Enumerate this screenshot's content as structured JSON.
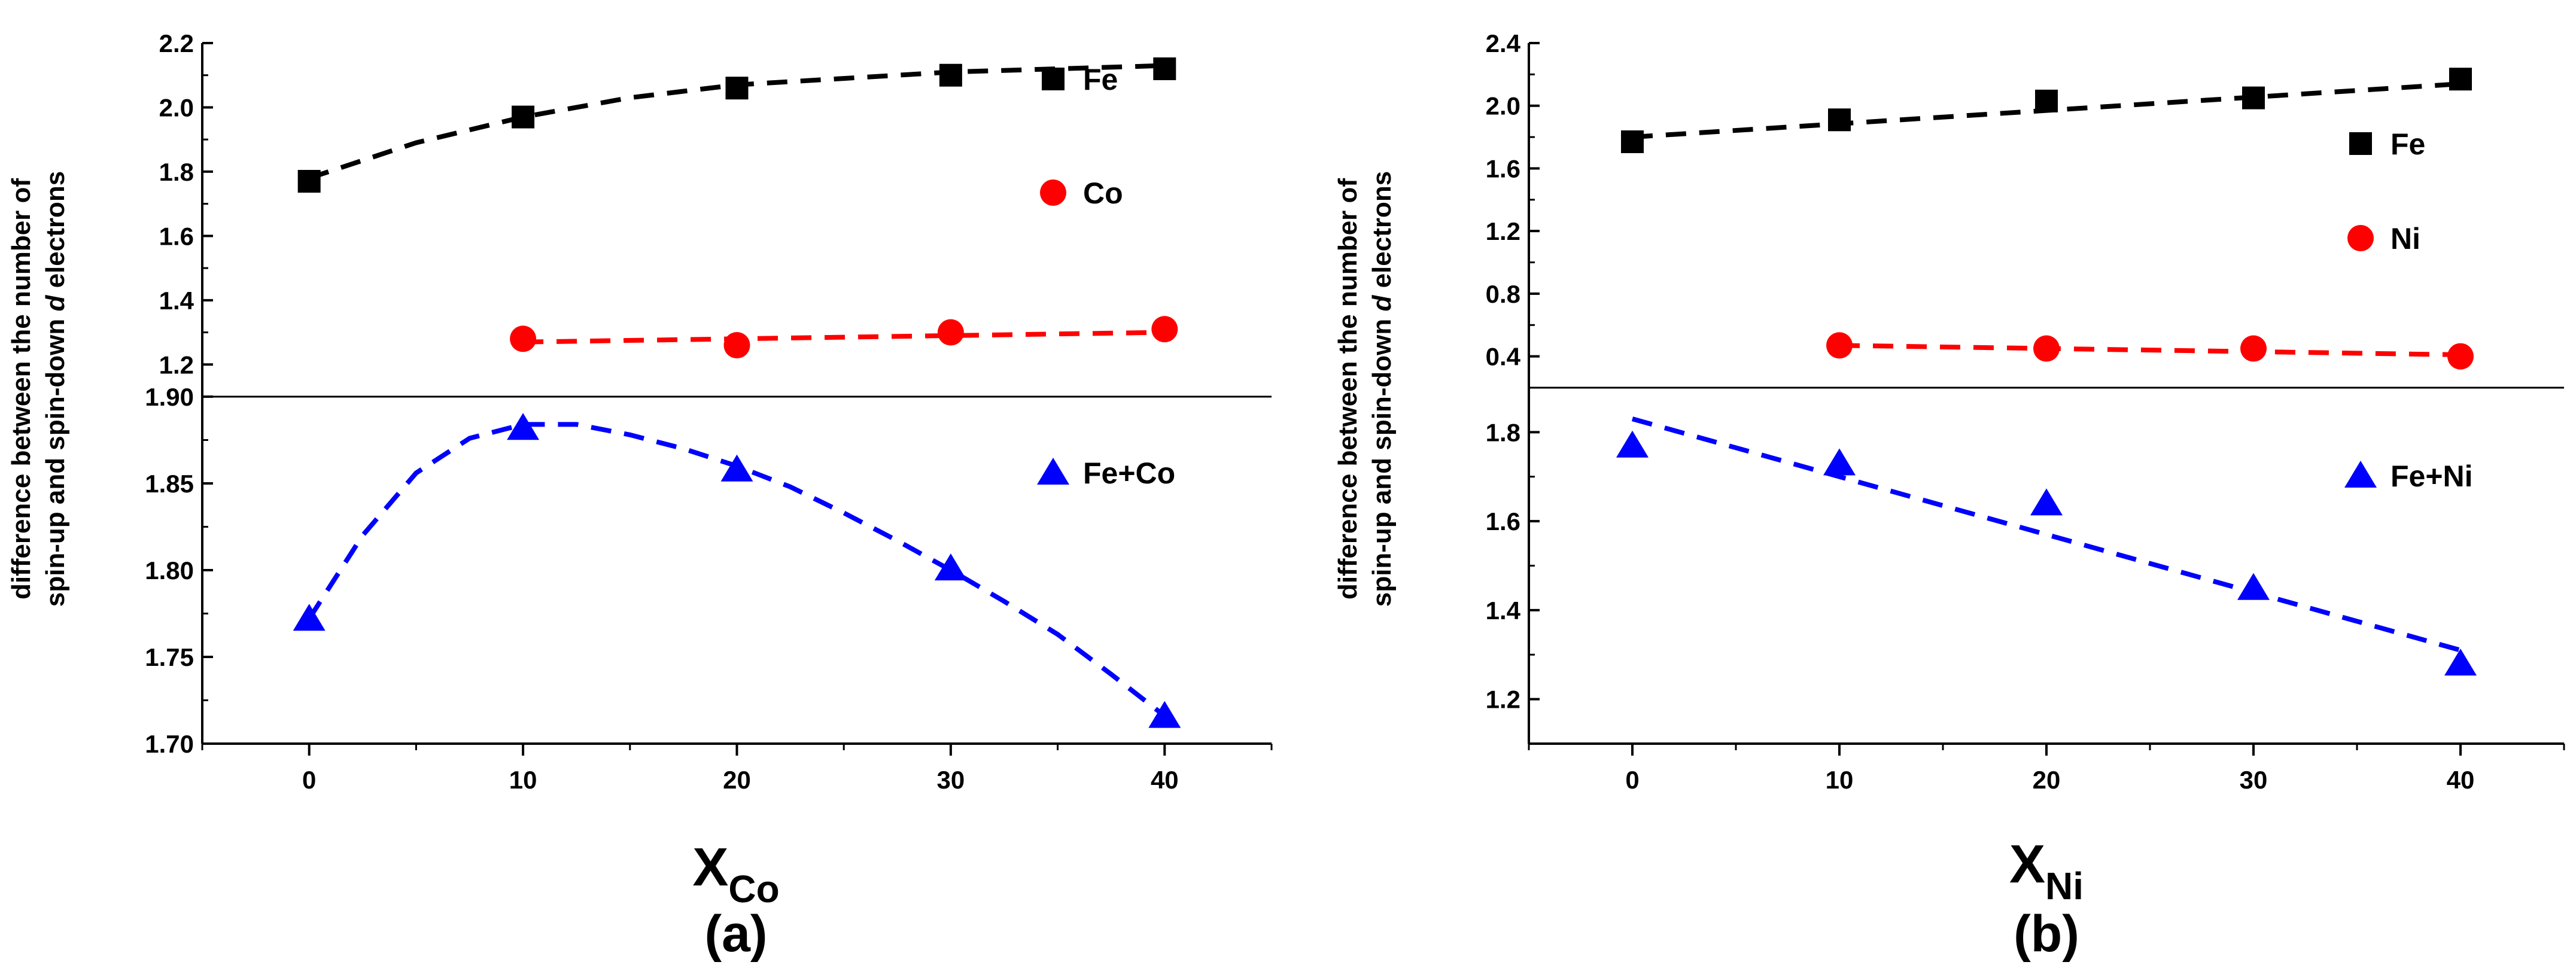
{
  "colors": {
    "fe": "#000000",
    "co": "#ff0000",
    "ni": "#ff0000",
    "sum": "#0000ff"
  },
  "chart_data": [
    {
      "id": "a",
      "type": "scatter",
      "panel_label": "(a)",
      "ylabel_line1": "difference between the number of",
      "ylabel_line2_pre": "spin-up and spin-down ",
      "ylabel_line2_italic": "d",
      "ylabel_line2_post": " electrons",
      "xlabel_main": "X",
      "xlabel_sub": "Co",
      "x_ticks": [
        0,
        10,
        20,
        30,
        40
      ],
      "xlim": [
        -5,
        45
      ],
      "top": {
        "ylim": [
          1.1,
          2.2
        ],
        "y_ticks": [
          "1.2",
          "1.4",
          "1.6",
          "1.8",
          "2.0",
          "2.2"
        ],
        "series": [
          {
            "name": "Fe",
            "marker": "square",
            "color": "#000000",
            "x": [
              0,
              10,
              20,
              30,
              40
            ],
            "y": [
              1.77,
              1.97,
              2.06,
              2.1,
              2.12
            ],
            "fit_x": [
              0,
              5,
              10,
              15,
              20,
              25,
              30,
              35,
              40
            ],
            "fit_y": [
              1.78,
              1.89,
              1.97,
              2.03,
              2.07,
              2.09,
              2.11,
              2.12,
              2.13
            ]
          },
          {
            "name": "Co",
            "marker": "circle",
            "color": "#ff0000",
            "x": [
              10,
              20,
              30,
              40
            ],
            "y": [
              1.28,
              1.26,
              1.3,
              1.31
            ],
            "fit_x": [
              10,
              40
            ],
            "fit_y": [
              1.27,
              1.3
            ]
          }
        ]
      },
      "bottom": {
        "ylim": [
          1.7,
          1.9
        ],
        "y_ticks": [
          "1.70",
          "1.75",
          "1.80",
          "1.85",
          "1.90"
        ],
        "series": [
          {
            "name": "Fe+Co",
            "marker": "triangle",
            "color": "#0000ff",
            "x": [
              0,
              10,
              20,
              30,
              40
            ],
            "y": [
              1.772,
              1.882,
              1.858,
              1.801,
              1.716
            ],
            "fit_x": [
              0,
              2.5,
              5,
              7.5,
              10,
              12.5,
              15,
              17.5,
              20,
              22.5,
              25,
              27.5,
              30,
              32.5,
              35,
              37.5,
              40
            ],
            "fit_y": [
              1.772,
              1.82,
              1.856,
              1.876,
              1.884,
              1.884,
              1.878,
              1.87,
              1.86,
              1.848,
              1.833,
              1.817,
              1.8,
              1.782,
              1.763,
              1.74,
              1.716
            ]
          }
        ]
      }
    },
    {
      "id": "b",
      "type": "scatter",
      "panel_label": "(b)",
      "ylabel_line1": "difference between the number of",
      "ylabel_line2_pre": "spin-up and spin-down ",
      "ylabel_line2_italic": "d",
      "ylabel_line2_post": " electrons",
      "xlabel_main": "X",
      "xlabel_sub": "Ni",
      "x_ticks": [
        0,
        10,
        20,
        30,
        40
      ],
      "xlim": [
        -5,
        45
      ],
      "top": {
        "ylim": [
          0.2,
          2.4
        ],
        "y_ticks": [
          "0.4",
          "0.8",
          "1.2",
          "1.6",
          "2.0",
          "2.4"
        ],
        "series": [
          {
            "name": "Fe",
            "marker": "square",
            "color": "#000000",
            "x": [
              0,
              10,
              20,
              30,
              40
            ],
            "y": [
              1.77,
              1.91,
              2.03,
              2.05,
              2.17
            ],
            "fit_x": [
              0,
              40
            ],
            "fit_y": [
              1.8,
              2.14
            ]
          },
          {
            "name": "Ni",
            "marker": "circle",
            "color": "#ff0000",
            "x": [
              10,
              20,
              30,
              40
            ],
            "y": [
              0.47,
              0.45,
              0.45,
              0.4
            ],
            "fit_x": [
              10,
              40
            ],
            "fit_y": [
              0.47,
              0.41
            ]
          }
        ]
      },
      "bottom": {
        "ylim": [
          1.1,
          1.9
        ],
        "y_ticks": [
          "1.2",
          "1.4",
          "1.6",
          "1.8"
        ],
        "series": [
          {
            "name": "Fe+Ni",
            "marker": "triangle",
            "color": "#0000ff",
            "x": [
              0,
              10,
              20,
              30,
              40
            ],
            "y": [
              1.77,
              1.73,
              1.64,
              1.45,
              1.28
            ],
            "fit_x": [
              0,
              40
            ],
            "fit_y": [
              1.83,
              1.31
            ]
          }
        ]
      }
    }
  ]
}
